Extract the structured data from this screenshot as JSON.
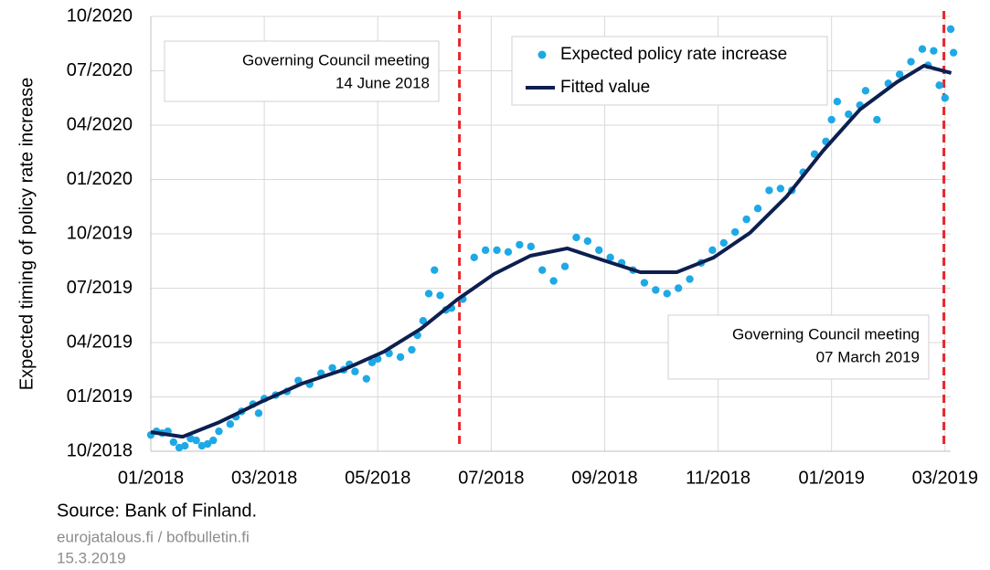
{
  "chart_data": {
    "type": "scatter",
    "ylabel": "Expected timing of policy rate increase",
    "xlim": [
      0,
      14.1
    ],
    "ylim": [
      9,
      33
    ],
    "xticks": [
      {
        "value": 0,
        "label": "01/2018"
      },
      {
        "value": 2,
        "label": "03/2018"
      },
      {
        "value": 4,
        "label": "05/2018"
      },
      {
        "value": 6,
        "label": "07/2018"
      },
      {
        "value": 8,
        "label": "09/2018"
      },
      {
        "value": 10,
        "label": "11/2018"
      },
      {
        "value": 12,
        "label": "01/2019"
      },
      {
        "value": 14,
        "label": "03/2019"
      }
    ],
    "yticks": [
      {
        "value": 9,
        "label": "10/2018"
      },
      {
        "value": 12,
        "label": "01/2019"
      },
      {
        "value": 15,
        "label": "04/2019"
      },
      {
        "value": 18,
        "label": "07/2019"
      },
      {
        "value": 21,
        "label": "10/2019"
      },
      {
        "value": 24,
        "label": "01/2020"
      },
      {
        "value": 27,
        "label": "04/2020"
      },
      {
        "value": 30,
        "label": "07/2020"
      },
      {
        "value": 33,
        "label": "10/2020"
      }
    ],
    "grid": true,
    "legend": "upper right",
    "series": [
      {
        "name": "Expected policy rate increase",
        "type": "scatter",
        "color": "#1ea9e6",
        "x": [
          0,
          0.1,
          0.2,
          0.3,
          0.4,
          0.5,
          0.6,
          0.7,
          0.8,
          0.9,
          1.0,
          1.1,
          1.2,
          1.4,
          1.5,
          1.6,
          1.8,
          1.9,
          2.0,
          2.2,
          2.4,
          2.6,
          2.8,
          3.0,
          3.2,
          3.4,
          3.5,
          3.6,
          3.8,
          3.9,
          4.0,
          4.2,
          4.4,
          4.6,
          4.7,
          4.8,
          4.9,
          5.0,
          5.1,
          5.2,
          5.3,
          5.5,
          5.7,
          5.9,
          6.1,
          6.3,
          6.5,
          6.7,
          6.9,
          7.1,
          7.3,
          7.5,
          7.7,
          7.9,
          8.1,
          8.3,
          8.5,
          8.7,
          8.9,
          9.1,
          9.3,
          9.5,
          9.7,
          9.9,
          10.1,
          10.3,
          10.5,
          10.7,
          10.9,
          11.1,
          11.3,
          11.5,
          11.7,
          11.9,
          12.0,
          12.1,
          12.3,
          12.5,
          12.6,
          12.8,
          13.0,
          13.2,
          13.4,
          13.6,
          13.7,
          13.8,
          13.9,
          14.0,
          14.1,
          14.15
        ],
        "values": [
          9.9,
          10.1,
          10.0,
          10.1,
          9.5,
          9.2,
          9.3,
          9.7,
          9.6,
          9.3,
          9.4,
          9.6,
          10.1,
          10.5,
          10.9,
          11.2,
          11.6,
          11.1,
          11.9,
          12.1,
          12.3,
          12.9,
          12.7,
          13.3,
          13.6,
          13.5,
          13.8,
          13.4,
          13.0,
          13.9,
          14.1,
          14.4,
          14.2,
          14.6,
          15.4,
          16.2,
          17.7,
          19.0,
          17.6,
          16.8,
          16.9,
          17.4,
          19.7,
          20.1,
          20.1,
          20.0,
          20.4,
          20.3,
          19.0,
          18.4,
          19.2,
          20.8,
          20.6,
          20.1,
          19.7,
          19.4,
          19.0,
          18.3,
          17.9,
          17.7,
          18.0,
          18.5,
          19.4,
          20.1,
          20.5,
          21.1,
          21.8,
          22.4,
          23.4,
          23.5,
          23.4,
          24.4,
          25.4,
          26.1,
          27.3,
          28.3,
          27.6,
          28.1,
          28.9,
          27.3,
          29.3,
          29.8,
          30.5,
          31.2,
          30.3,
          31.1,
          29.2,
          28.5,
          32.3,
          31.0
        ]
      },
      {
        "name": "Fitted value",
        "type": "line",
        "color": "#0d1f4f",
        "x": [
          0,
          0.56,
          1.21,
          1.94,
          2.66,
          3.39,
          4.11,
          4.76,
          5.4,
          6.05,
          6.69,
          7.34,
          7.98,
          8.63,
          9.27,
          9.92,
          10.56,
          11.21,
          11.85,
          12.5,
          13.15,
          13.63,
          14.11
        ],
        "values": [
          10.06,
          9.8,
          10.61,
          11.72,
          12.73,
          13.49,
          14.5,
          15.76,
          17.37,
          18.78,
          19.79,
          20.2,
          19.54,
          18.88,
          18.88,
          19.69,
          21.05,
          23.07,
          25.59,
          27.86,
          29.37,
          30.28,
          29.88
        ]
      }
    ],
    "vlines": [
      {
        "x": 5.44,
        "color": "#e8262b",
        "text": [
          "Governing Council meeting",
          "14 June 2018"
        ]
      },
      {
        "x": 13.98,
        "color": "#e8262b",
        "text": [
          "Governing Council meeting",
          "07 March 2019"
        ]
      }
    ],
    "source": "Source: Bank of Finland.",
    "notes": [
      "eurojatalous.fi  / bofbulletin.fi",
      "15.3.2019"
    ]
  }
}
